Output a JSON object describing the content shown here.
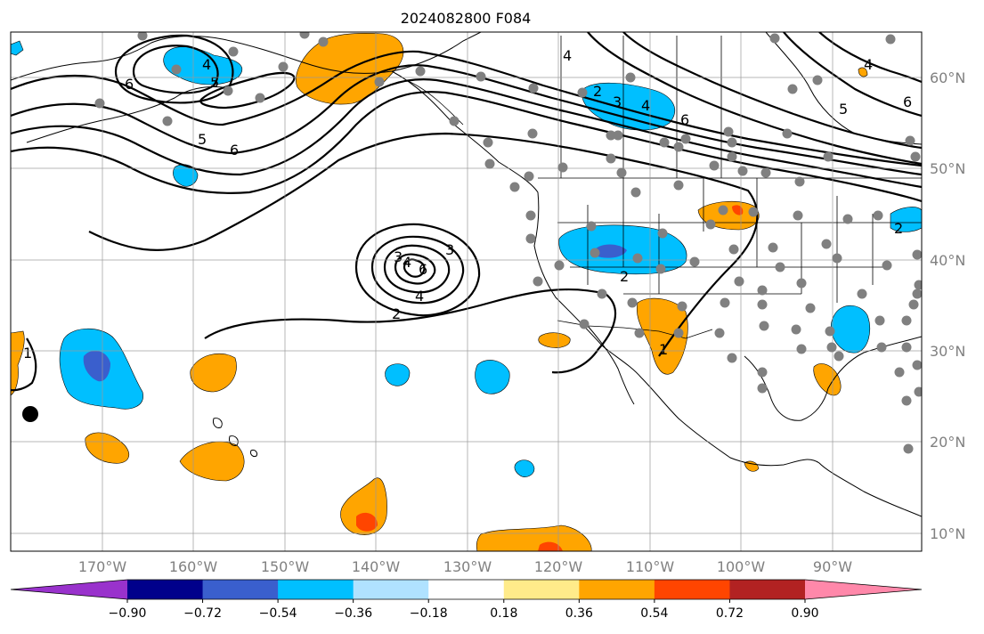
{
  "title": "2024082800 F084",
  "map": {
    "lon_ticks": [
      "170°W",
      "160°W",
      "150°W",
      "140°W",
      "130°W",
      "120°W",
      "110°W",
      "100°W",
      "90°W"
    ],
    "lat_ticks": [
      "60°N",
      "50°N",
      "40°N",
      "30°N",
      "20°N",
      "10°N"
    ],
    "contour_labels": [
      "4",
      "5",
      "6",
      "5",
      "6",
      "4",
      "2",
      "3",
      "4",
      "6",
      "6",
      "5",
      "3",
      "4",
      "2",
      "3",
      "4",
      "5",
      "6",
      "2",
      "1",
      "1",
      "2",
      "4",
      "5",
      "6"
    ],
    "colors": {
      "contour": "#000000",
      "station": "#808080",
      "grid": "#999999",
      "tick_text": "#808080"
    }
  },
  "colorbar": {
    "colors": [
      "#9932cc",
      "#00008b",
      "#3a5fcd",
      "#00bfff",
      "#b0e2ff",
      "#ffffff",
      "#ffeb8a",
      "#ffa500",
      "#ff4500",
      "#b22222",
      "#ff88aa"
    ],
    "tick_labels": [
      "−0.90",
      "−0.72",
      "−0.54",
      "−0.36",
      "−0.18",
      "0.18",
      "0.36",
      "0.54",
      "0.72",
      "0.90"
    ]
  }
}
